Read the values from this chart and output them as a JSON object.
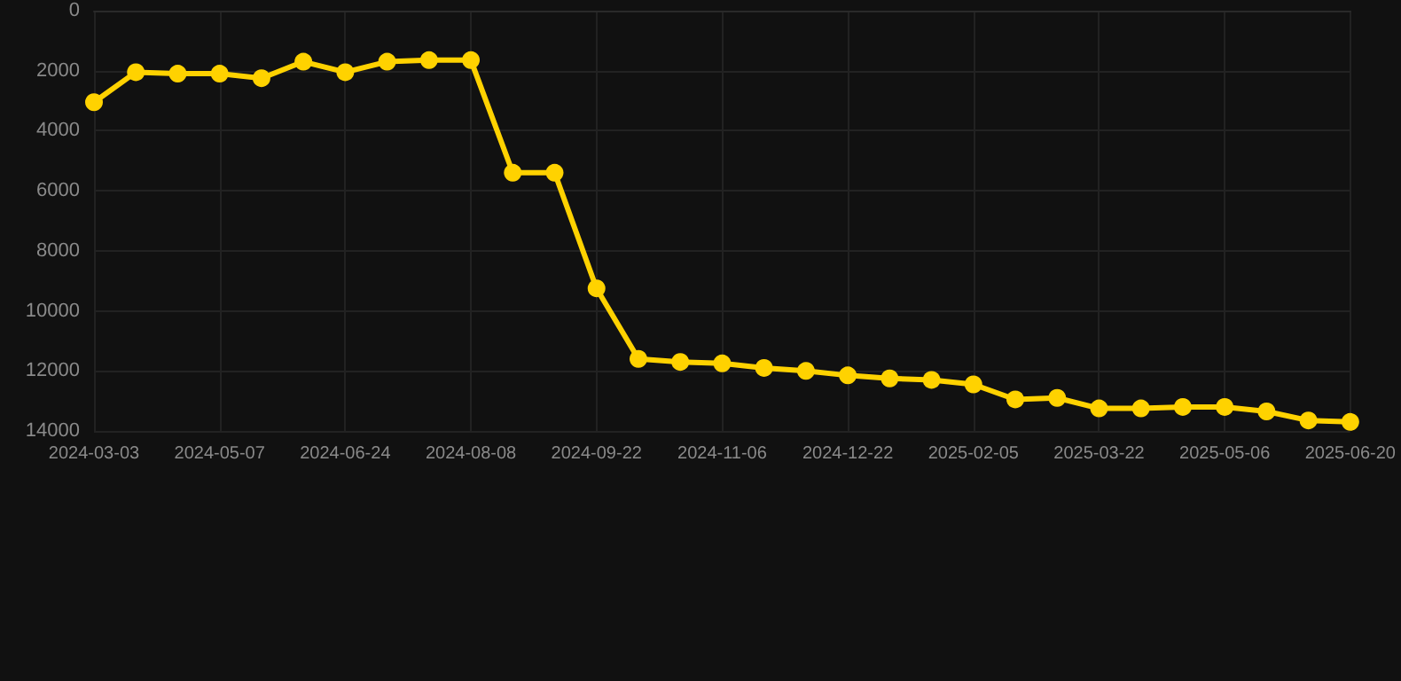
{
  "chart_data": {
    "type": "line",
    "categories": [
      "2024-03-03",
      null,
      null,
      "2024-05-07",
      null,
      null,
      "2024-06-24",
      null,
      null,
      "2024-08-08",
      null,
      null,
      "2024-09-22",
      null,
      null,
      "2024-11-06",
      null,
      null,
      "2024-12-22",
      null,
      null,
      "2025-02-05",
      null,
      null,
      "2025-03-22",
      null,
      null,
      "2025-05-06",
      null,
      null,
      "2025-06-20"
    ],
    "series": [
      {
        "color": "#ffd200",
        "values": [
          3050,
          2050,
          2100,
          2100,
          2250,
          1700,
          2050,
          1700,
          1650,
          1650,
          5400,
          5400,
          9250,
          11600,
          11700,
          11750,
          11900,
          12000,
          12150,
          12250,
          12300,
          12450,
          12950,
          12900,
          13250,
          13250,
          13200,
          13200,
          13350,
          13650,
          13700
        ]
      }
    ],
    "ylim": [
      14000,
      0
    ],
    "yticks": [
      0,
      2000,
      4000,
      6000,
      8000,
      10000,
      12000,
      14000
    ],
    "grid": true,
    "marker": "circle",
    "line_style": "solid"
  }
}
